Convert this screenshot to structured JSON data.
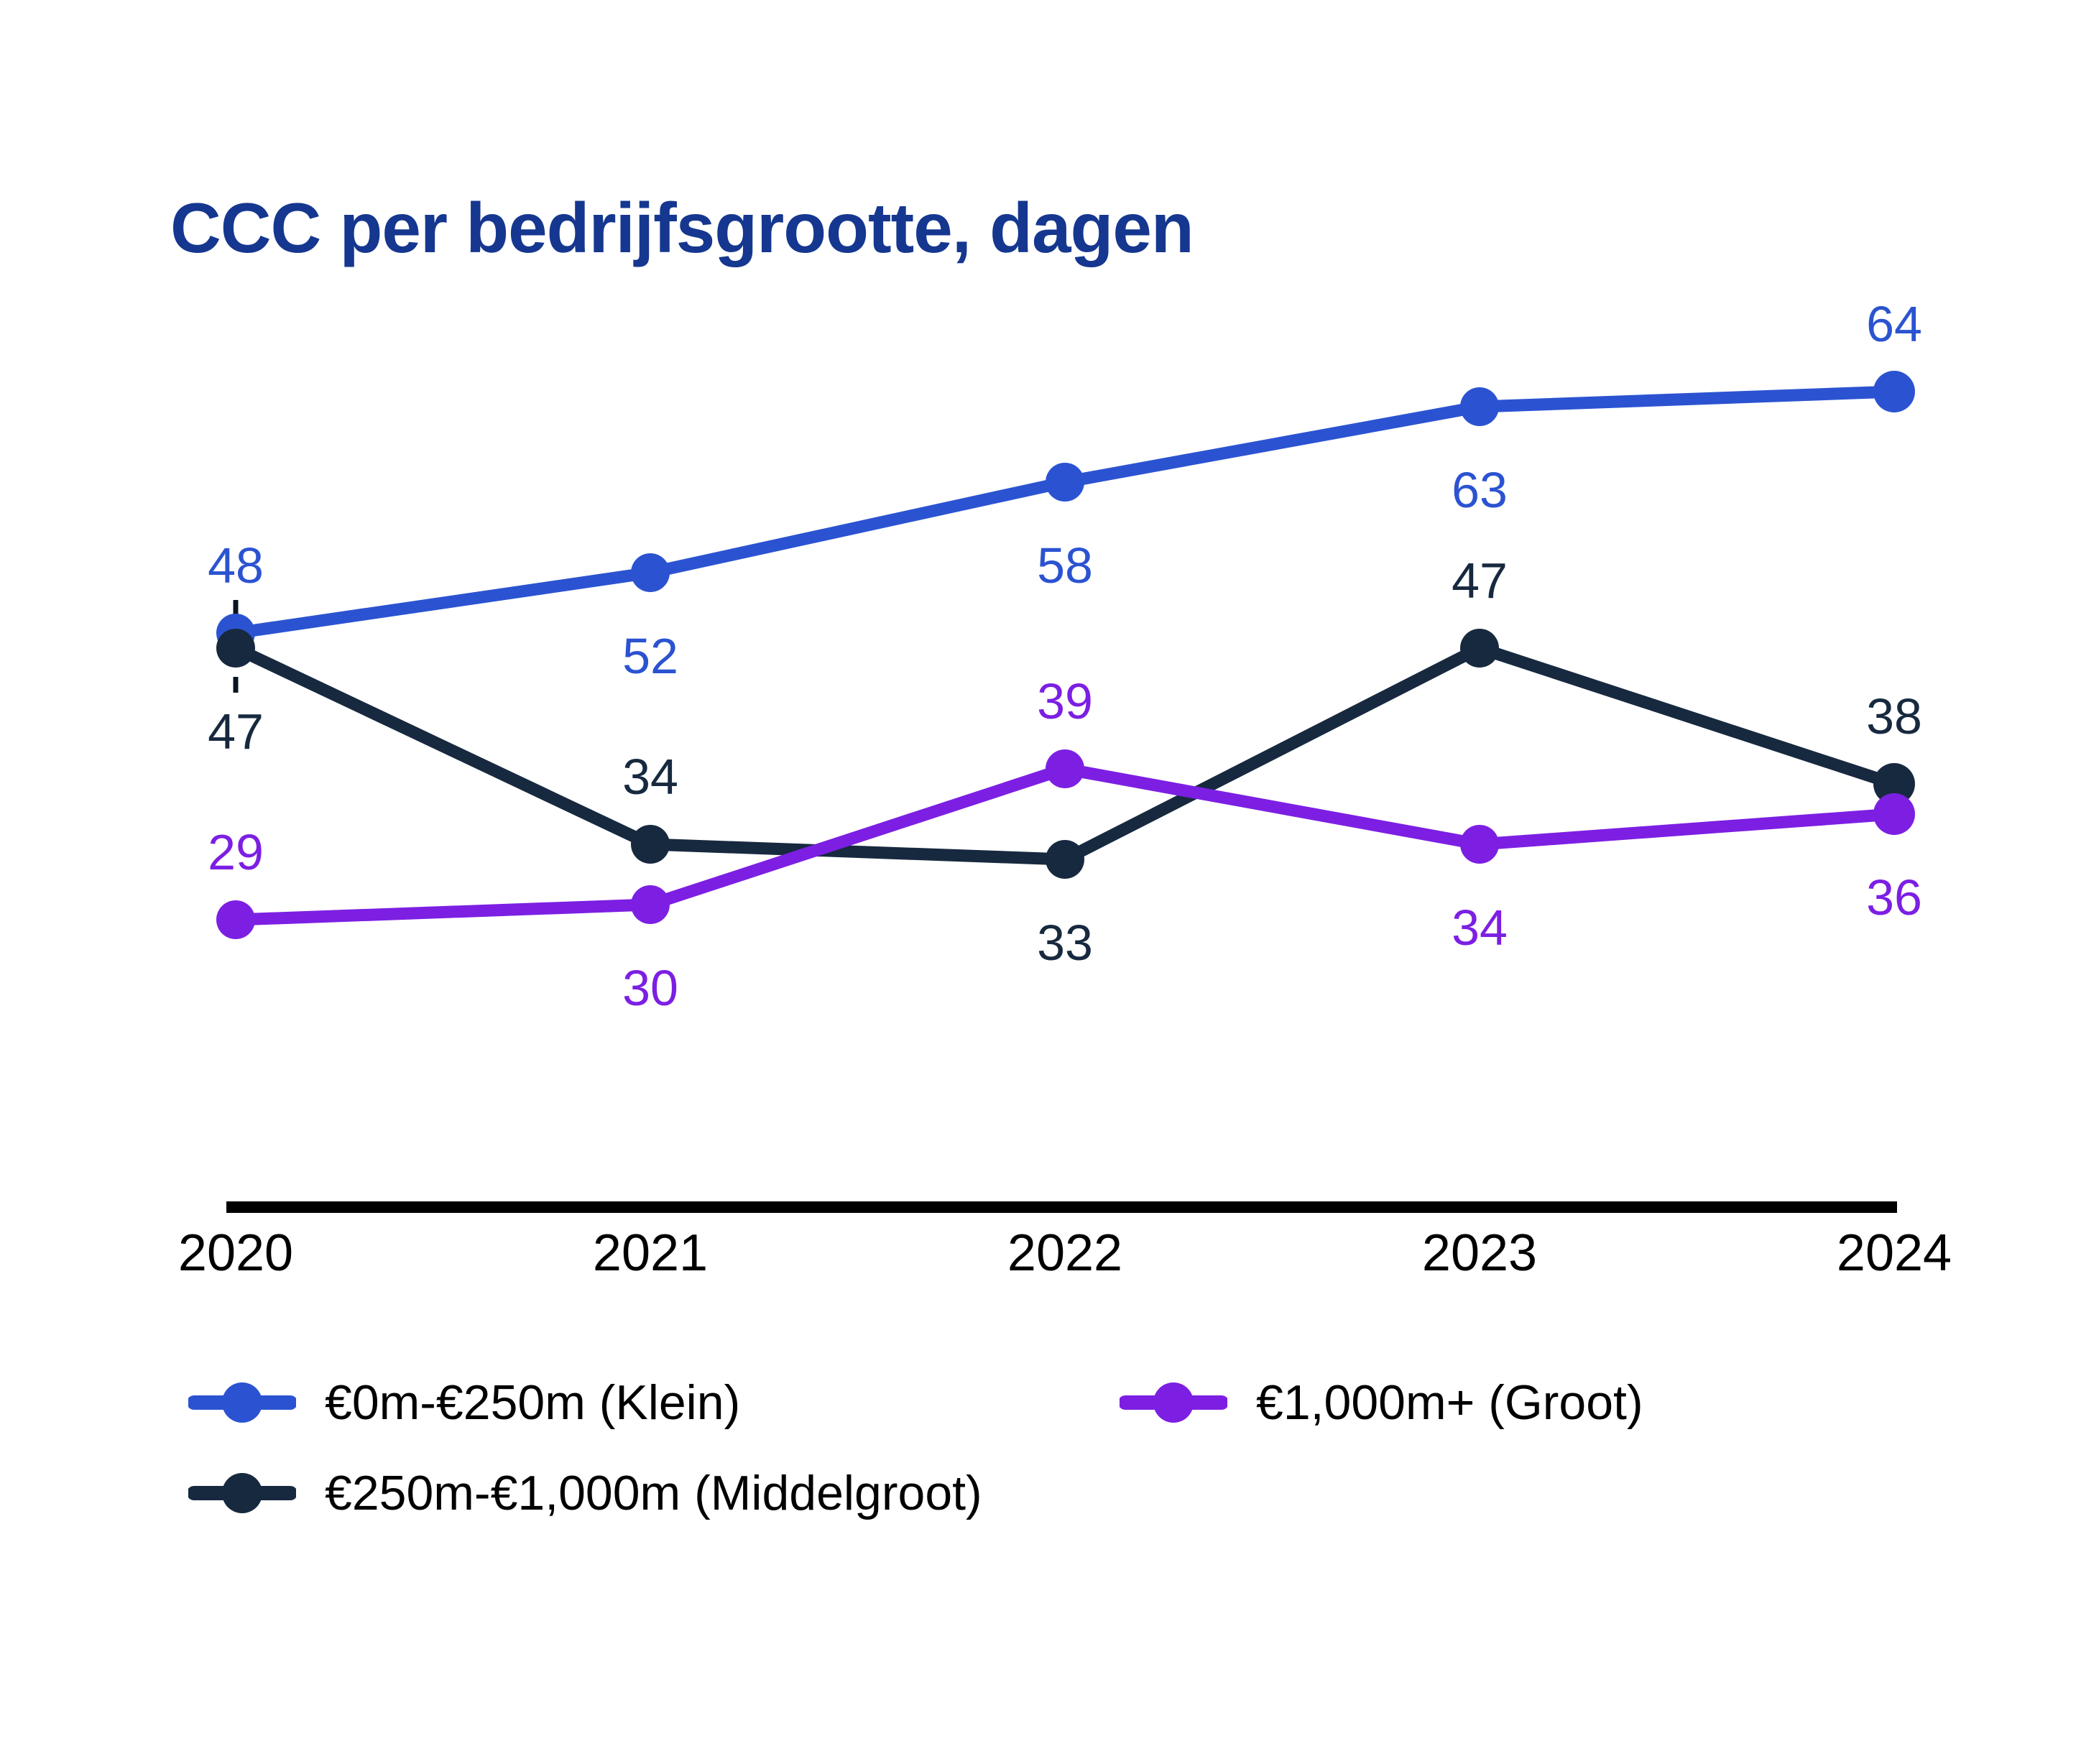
{
  "title": {
    "text": "CCC per bedrijfsgrootte, dagen",
    "color": "#15378F"
  },
  "background_color": "#ffffff",
  "chart_data": {
    "type": "line",
    "x": [
      2020,
      2021,
      2022,
      2023,
      2024
    ],
    "series": [
      {
        "name": "€0m-€250m (Klein)",
        "key": "klein",
        "color": "#2B53D1",
        "values": [
          48,
          52,
          58,
          63,
          64
        ],
        "label_sides": [
          "above",
          "below",
          "below",
          "below",
          "above"
        ]
      },
      {
        "name": "€250m-€1,000m (Middelgroot)",
        "key": "middelgroot",
        "color": "#17293F",
        "values": [
          47,
          34,
          33,
          47,
          38
        ],
        "label_sides": [
          "below",
          "above",
          "below",
          "above",
          "above"
        ]
      },
      {
        "name": "€1,000m+ (Groot)",
        "key": "groot",
        "color": "#7C1FE3",
        "values": [
          29,
          30,
          39,
          34,
          36
        ],
        "label_sides": [
          "above",
          "below",
          "above",
          "below",
          "below"
        ]
      }
    ],
    "title": "CCC per bedrijfsgrootte, dagen",
    "xlabel": "",
    "ylabel": "",
    "ylim": [
      25,
      70
    ],
    "grid": false,
    "data_labels_shown": true,
    "axis_color": "#000000",
    "legend_position": "bottom",
    "annotations": {
      "dashed_connector": {
        "at_year": 2020,
        "between_labels": [
          48,
          47
        ]
      }
    }
  }
}
